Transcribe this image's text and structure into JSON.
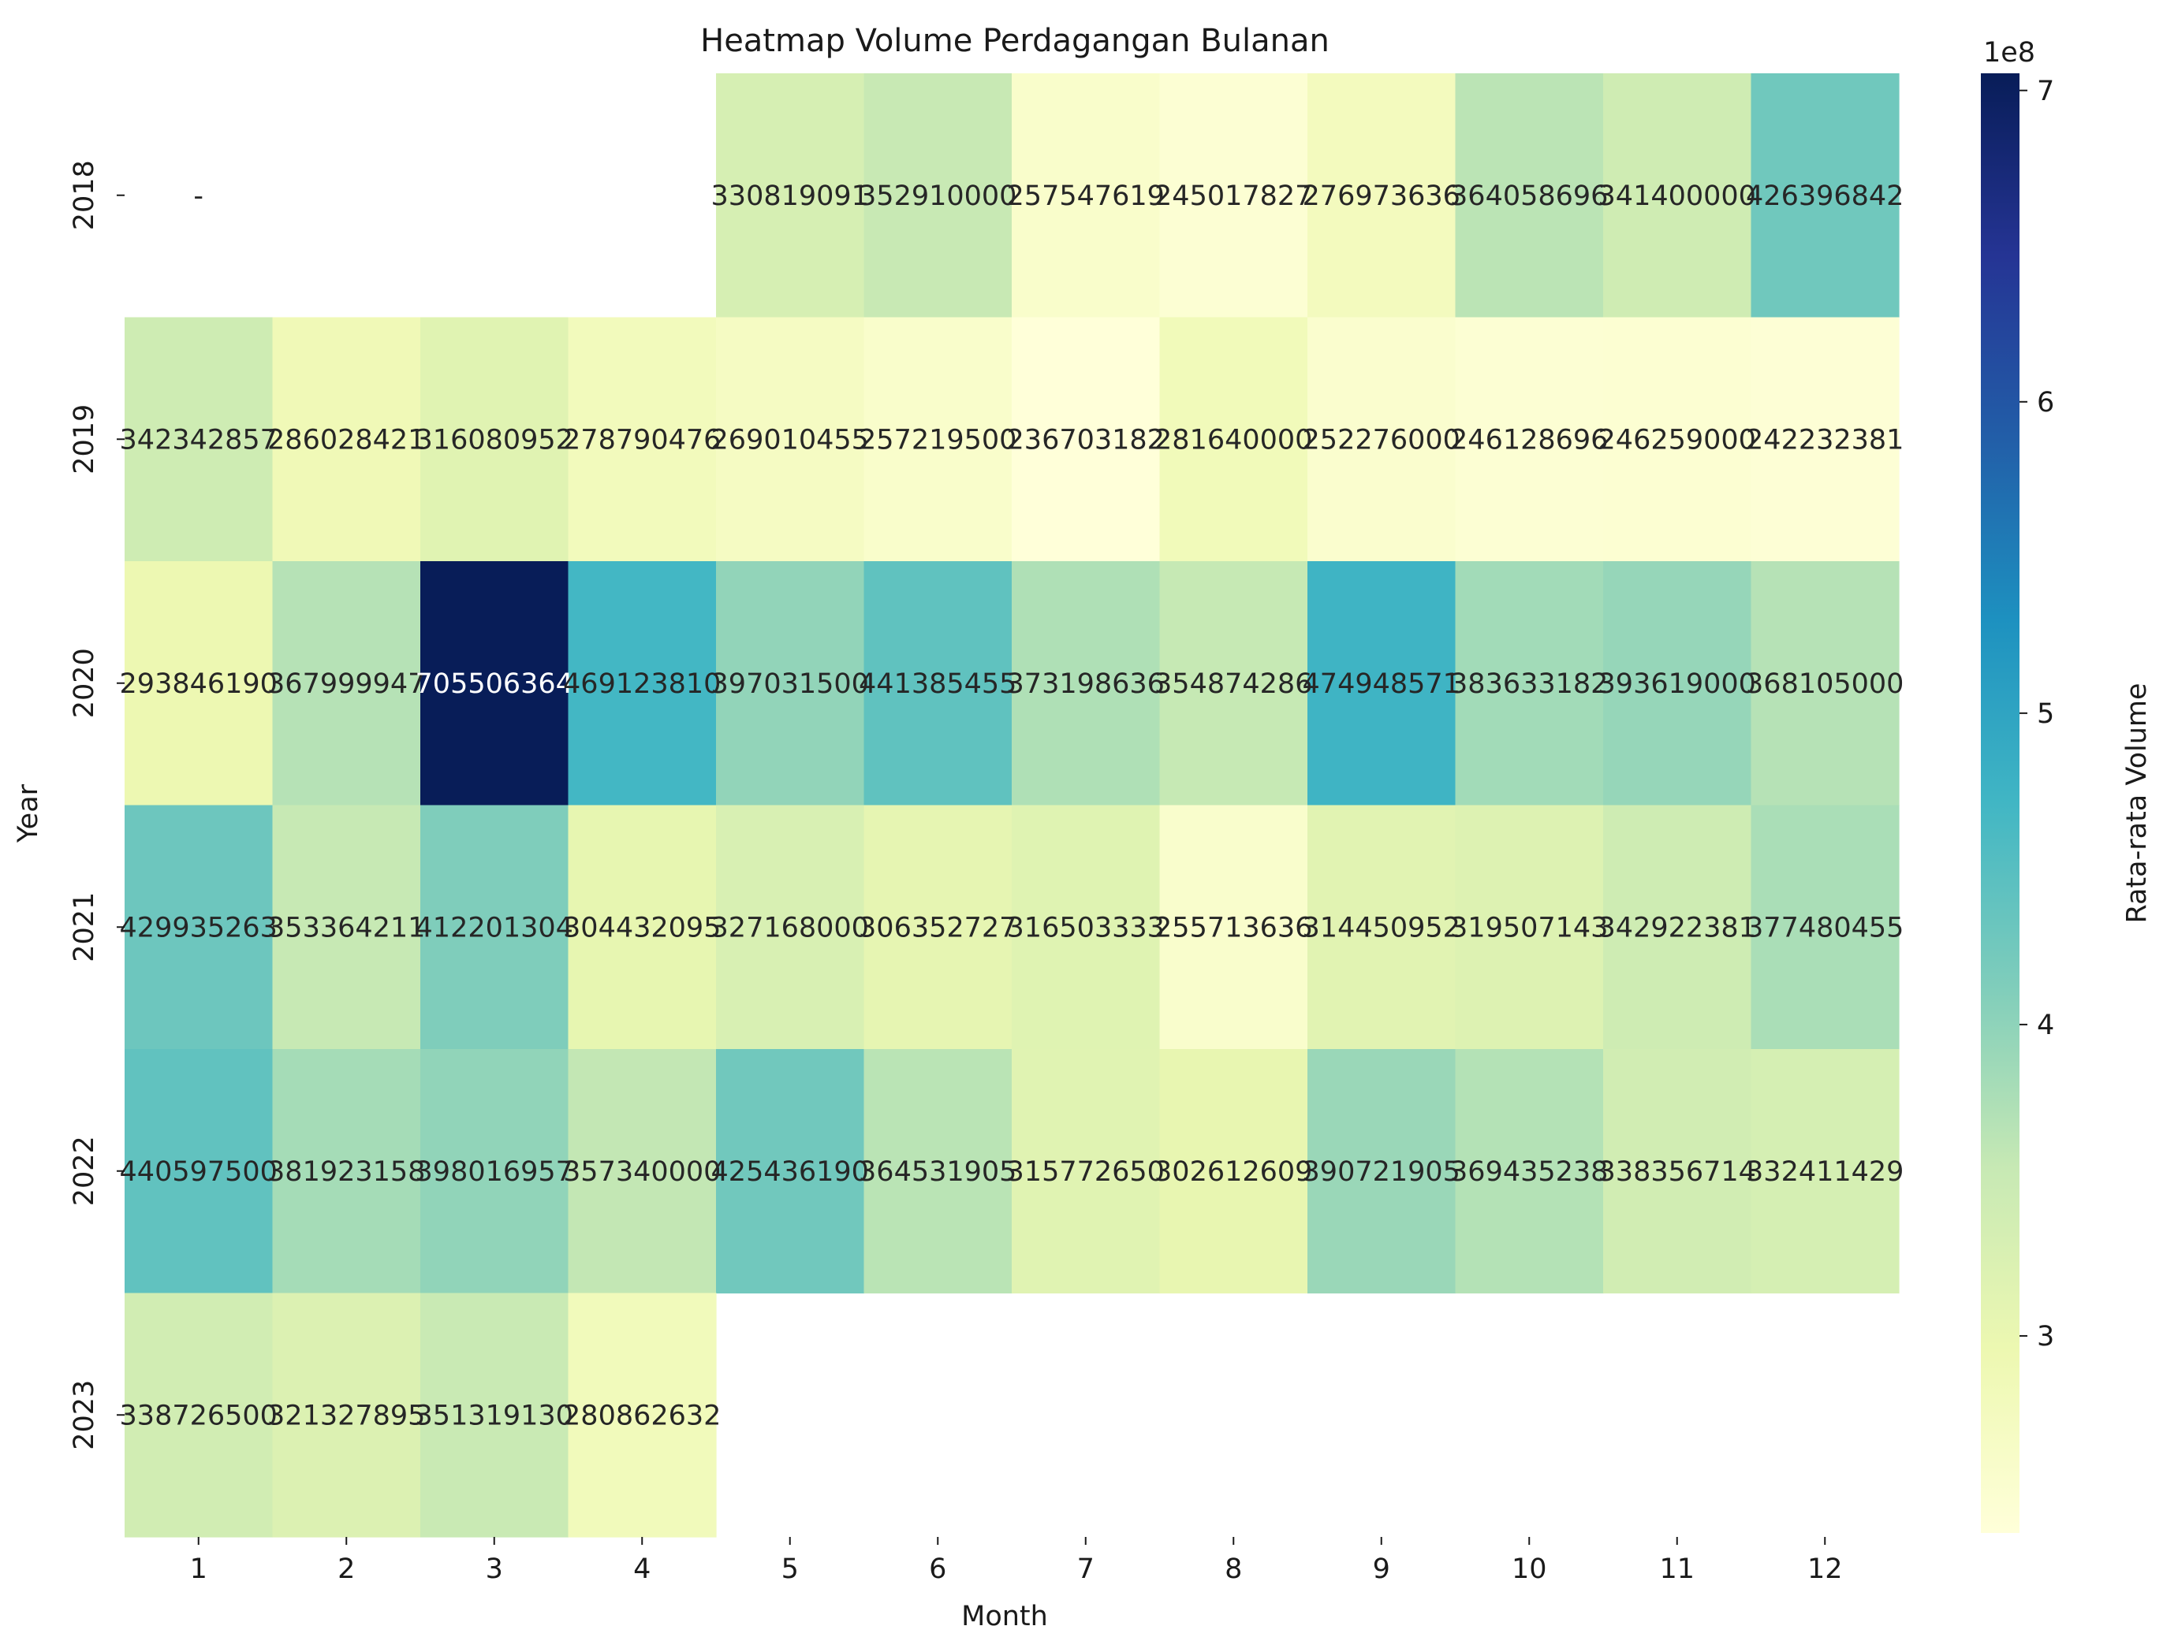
{
  "chart_data": {
    "type": "heatmap",
    "title": "Heatmap Volume Perdagangan Bulanan",
    "xlabel": "Month",
    "ylabel": "Year",
    "x_categories": [
      "1",
      "2",
      "3",
      "4",
      "5",
      "6",
      "7",
      "8",
      "9",
      "10",
      "11",
      "12"
    ],
    "y_categories": [
      "2018",
      "2019",
      "2020",
      "2021",
      "2022",
      "2023"
    ],
    "values": [
      [
        null,
        null,
        null,
        null,
        330819091,
        352910000,
        257547619,
        245017827,
        276973636,
        364058696,
        341400000,
        426396842
      ],
      [
        342342857,
        286028421,
        316080952,
        278790476,
        269010455,
        257219500,
        236703182,
        281640000,
        252276000,
        246128696,
        246259000,
        242232381
      ],
      [
        293846190,
        367999947,
        705506364,
        469123810,
        397031500,
        441385455,
        373198636,
        354874286,
        474948571,
        383633182,
        393619000,
        368105000
      ],
      [
        429935263,
        353364211,
        412201304,
        304432095,
        327168000,
        306352727,
        316503333,
        255713636,
        314450952,
        319507143,
        342922381,
        377480455
      ],
      [
        440597500,
        381923158,
        398016957,
        357340000,
        425436190,
        364531905,
        315772650,
        302612609,
        390721905,
        369435238,
        338356714,
        332411429
      ],
      [
        338726500,
        321327895,
        351319130,
        280862632,
        null,
        null,
        null,
        null,
        null,
        null,
        null,
        null
      ]
    ],
    "display_labels": [
      [
        "-",
        "",
        "",
        "",
        "330819091",
        "352910000",
        "257547619",
        "245017827",
        "276973636",
        "364058696",
        "341400000",
        "426396842"
      ],
      [
        "342342857",
        "286028421",
        "316080952",
        "278790476",
        "269010455",
        "257219500",
        "236703182",
        "281640000",
        "252276000",
        "246128696",
        "246259000",
        "242232381"
      ],
      [
        "293846190",
        "367999947",
        "705506364",
        "469123810",
        "397031500",
        "441385455",
        "373198636",
        "354874286",
        "474948571",
        "383633182",
        "393619000",
        "368105000"
      ],
      [
        "429935263",
        "353364211",
        "412201304",
        "304432095",
        "327168000",
        "306352727",
        "316503333",
        "255713636",
        "314450952",
        "319507143",
        "342922381",
        "377480455"
      ],
      [
        "440597500",
        "381923158",
        "398016957",
        "357340000",
        "425436190",
        "364531905",
        "315772650",
        "302612609",
        "390721905",
        "369435238",
        "338356714",
        "332411429"
      ],
      [
        "338726500",
        "321327895",
        "351319130",
        "280862632",
        "",
        "",
        "",
        "",
        "",
        "",
        "",
        ""
      ]
    ],
    "colorbar": {
      "label": "Rata-rata Volume",
      "multiplier": "1e8",
      "ticks": [
        "3",
        "4",
        "5",
        "6",
        "7"
      ],
      "tick_values": [
        300000000,
        400000000,
        500000000,
        600000000,
        700000000
      ],
      "range": [
        236703182,
        705506364
      ]
    },
    "colormap": "YlGnBu",
    "colors": {
      "stops": [
        "#ffffd9",
        "#edf8b1",
        "#c7e9b4",
        "#7fcdbb",
        "#41b6c4",
        "#1d91c0",
        "#225ea8",
        "#253494",
        "#081d58"
      ],
      "text_dark": "#262626",
      "text_light": "#ffffff"
    }
  }
}
